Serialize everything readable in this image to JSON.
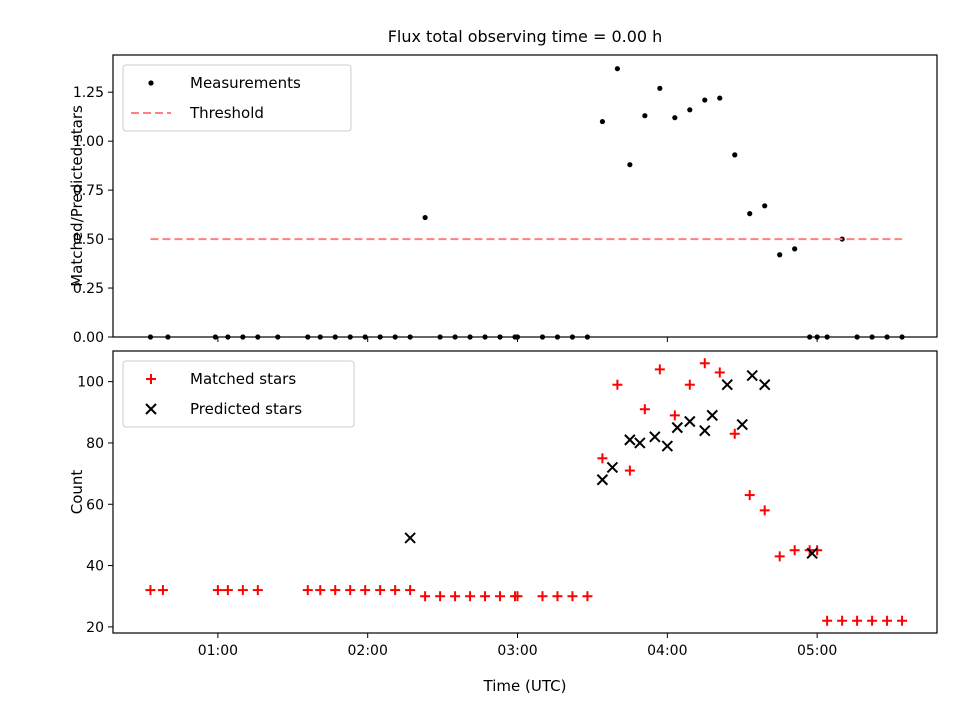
{
  "chart_data": [
    {
      "type": "scatter",
      "title": "Flux total observing time = 0.00 h",
      "xlabel": "",
      "ylabel": "Matched/Predicted stars",
      "xlim": [
        "00:18",
        "05:48"
      ],
      "ylim": [
        0,
        1.44
      ],
      "yticks": [
        0.0,
        0.25,
        0.5,
        0.75,
        1.0,
        1.25
      ],
      "ytick_labels": [
        "0.00",
        "0.25",
        "0.50",
        "0.75",
        "1.00",
        "1.25"
      ],
      "legend_position": "upper left",
      "series": [
        {
          "name": "Measurements",
          "marker": "dot",
          "color": "#000000",
          "x": [
            "00:33",
            "00:40",
            "00:59",
            "01:04",
            "01:10",
            "01:16",
            "01:24",
            "01:36",
            "01:41",
            "01:47",
            "01:53",
            "01:59",
            "02:05",
            "02:11",
            "02:17",
            "02:23",
            "02:29",
            "02:35",
            "02:41",
            "02:47",
            "02:53",
            "02:59",
            "03:00",
            "03:10",
            "03:16",
            "03:22",
            "03:28",
            "03:34",
            "03:40",
            "03:45",
            "03:51",
            "03:57",
            "04:03",
            "04:09",
            "04:15",
            "04:21",
            "04:27",
            "04:33",
            "04:39",
            "04:45",
            "04:51",
            "04:57",
            "05:00",
            "05:04",
            "05:10",
            "05:16",
            "05:22",
            "05:28",
            "05:34"
          ],
          "y": [
            0,
            0,
            0,
            0,
            0,
            0,
            0,
            0,
            0,
            0,
            0,
            0,
            0,
            0,
            0,
            0.61,
            0,
            0,
            0,
            0,
            0,
            0,
            0,
            0,
            0,
            0,
            0,
            1.1,
            1.37,
            0.88,
            1.13,
            1.27,
            1.12,
            1.16,
            1.21,
            1.22,
            0.93,
            0.63,
            0.67,
            0.42,
            0.45,
            0,
            0,
            0,
            0.5,
            0,
            0,
            0,
            0
          ]
        },
        {
          "name": "Threshold",
          "style": "dashed",
          "color": "#ff8080",
          "x": [
            "00:33",
            "05:34"
          ],
          "y": [
            0.5,
            0.5
          ]
        }
      ]
    },
    {
      "type": "scatter",
      "title": "",
      "xlabel": "Time (UTC)",
      "ylabel": "Count",
      "xlim": [
        "00:18",
        "05:48"
      ],
      "ylim": [
        18,
        110
      ],
      "yticks": [
        20,
        40,
        60,
        80,
        100
      ],
      "xticks": [
        "01:00",
        "02:00",
        "03:00",
        "04:00",
        "05:00"
      ],
      "legend_position": "upper left",
      "series": [
        {
          "name": "Matched stars",
          "marker": "plus",
          "color": "#ff0000",
          "x": [
            "00:33",
            "00:38",
            "01:00",
            "01:04",
            "01:10",
            "01:16",
            "01:36",
            "01:41",
            "01:47",
            "01:53",
            "01:59",
            "02:05",
            "02:11",
            "02:17",
            "02:23",
            "02:29",
            "02:35",
            "02:41",
            "02:47",
            "02:53",
            "02:59",
            "03:00",
            "03:10",
            "03:16",
            "03:22",
            "03:28",
            "03:34",
            "03:40",
            "03:45",
            "03:51",
            "03:57",
            "04:03",
            "04:09",
            "04:15",
            "04:21",
            "04:27",
            "04:33",
            "04:39",
            "04:45",
            "04:51",
            "04:57",
            "05:00",
            "05:04",
            "05:10",
            "05:16",
            "05:22",
            "05:28",
            "05:34"
          ],
          "y": [
            32,
            32,
            32,
            32,
            32,
            32,
            32,
            32,
            32,
            32,
            32,
            32,
            32,
            32,
            30,
            30,
            30,
            30,
            30,
            30,
            30,
            30,
            30,
            30,
            30,
            30,
            75,
            99,
            71,
            91,
            104,
            89,
            99,
            106,
            103,
            83,
            63,
            58,
            43,
            45,
            45,
            45,
            22,
            22,
            22,
            22,
            22,
            22
          ]
        },
        {
          "name": "Predicted stars",
          "marker": "x",
          "color": "#000000",
          "x": [
            "02:17",
            "03:34",
            "03:38",
            "03:45",
            "03:49",
            "03:55",
            "04:00",
            "04:04",
            "04:09",
            "04:15",
            "04:18",
            "04:24",
            "04:30",
            "04:34",
            "04:39",
            "04:58"
          ],
          "y": [
            49,
            68,
            72,
            81,
            80,
            82,
            79,
            85,
            87,
            84,
            89,
            99,
            86,
            102,
            99,
            44
          ]
        }
      ]
    }
  ]
}
